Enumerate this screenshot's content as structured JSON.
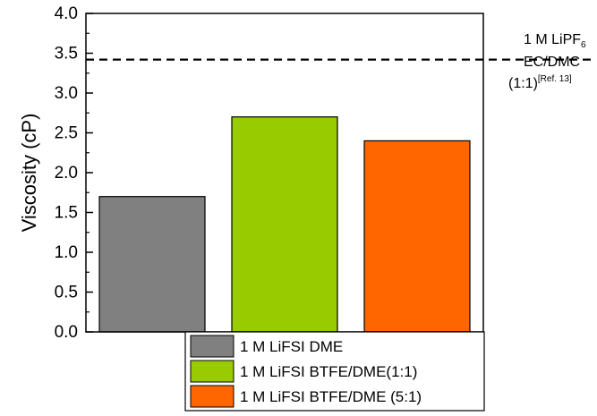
{
  "chart_data": {
    "type": "bar",
    "categories": [
      "1 M LiFSI DME",
      "1 M LiFSI BTFE/DME(1:1)",
      "1 M LiFSI BTFE/DME (5:1)"
    ],
    "values": [
      1.7,
      2.7,
      2.4
    ],
    "colors": [
      "#808080",
      "#99CC00",
      "#FF6600"
    ],
    "ylabel": "Viscosity (cP)",
    "ylim": [
      0,
      4.0
    ],
    "yticks": [
      "0.0",
      "0.5",
      "1.0",
      "1.5",
      "2.0",
      "2.5",
      "3.0",
      "3.5",
      "4.0"
    ],
    "grid": false,
    "legend_placement": "bottom",
    "reference_line": {
      "value": 3.42,
      "style": "dashed",
      "label_line1_main": "1 M LiPF",
      "label_line1_sub": "6",
      "label_line2": "EC/DMC",
      "label_line3_main": "(1:1)",
      "label_line3_sup": "[Ref. 13]"
    }
  }
}
